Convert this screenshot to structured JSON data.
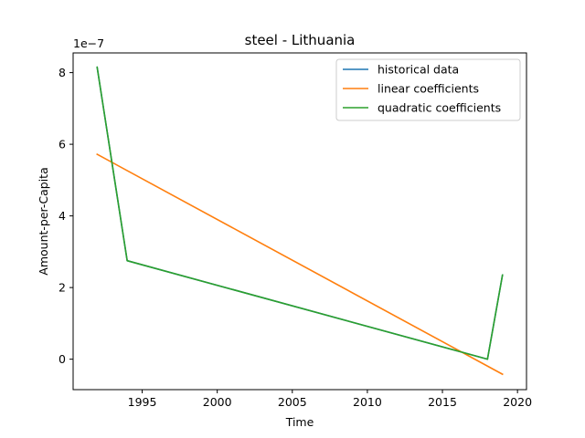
{
  "chart_data": {
    "type": "line",
    "title": "steel - Lithuania",
    "xlabel": "Time",
    "ylabel": "Amount-per-Capita",
    "y_offset_label": "1e−7",
    "xlim": [
      1990.4,
      2020.6
    ],
    "ylim": [
      -0.85,
      8.55
    ],
    "x_ticks": [
      1995,
      2000,
      2005,
      2010,
      2015,
      2020
    ],
    "y_ticks": [
      0,
      2,
      4,
      6,
      8
    ],
    "grid": false,
    "legend_position": "top-right",
    "series": [
      {
        "name": "historical data",
        "color": "#1f77b4",
        "x": [
          1992,
          1994,
          2018,
          2019
        ],
        "y": [
          8.15,
          2.75,
          0.0,
          2.35
        ]
      },
      {
        "name": "linear coefficients",
        "color": "#ff7f0e",
        "x": [
          1992,
          2019
        ],
        "y": [
          5.72,
          -0.42
        ]
      },
      {
        "name": "quadratic coefficients",
        "color": "#2ca02c",
        "x": [
          1992,
          1994,
          2018,
          2019
        ],
        "y": [
          8.15,
          2.75,
          0.0,
          2.35
        ]
      }
    ]
  }
}
